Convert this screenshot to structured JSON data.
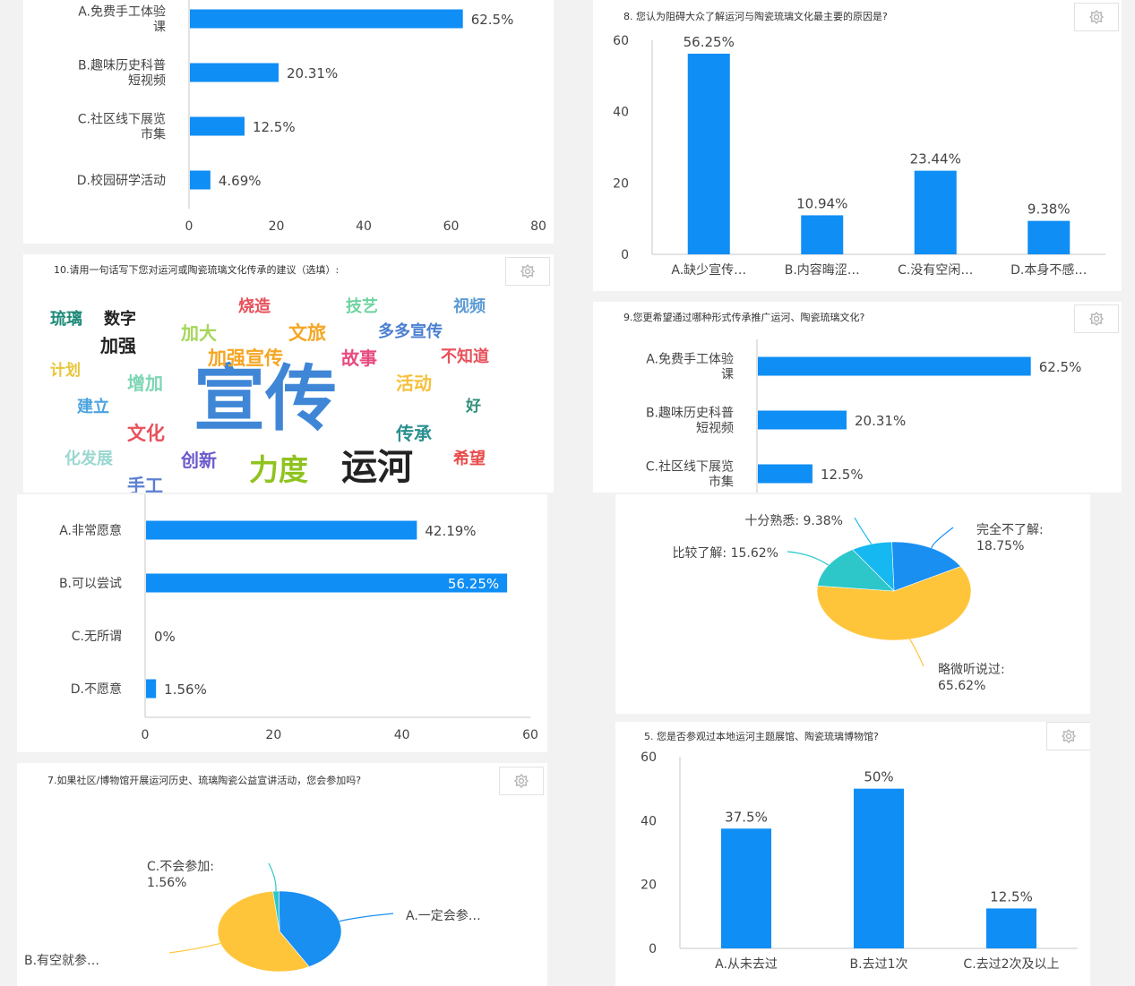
{
  "colors": {
    "bar": "#0f8ef5",
    "axis": "#c7c7c7",
    "text": "#444444",
    "grid": "#e4e4e4"
  },
  "chart_data": [
    {
      "id": "c1",
      "type": "bar",
      "orientation": "horizontal",
      "title": "",
      "categories": [
        [
          "A.免费手工体验",
          "课"
        ],
        [
          "B.趣味历史科普",
          "短视频"
        ],
        [
          "C.社区线下展览",
          "市集"
        ],
        [
          "D.校园研学活动"
        ]
      ],
      "values": [
        62.5,
        20.31,
        12.5,
        4.69
      ],
      "value_labels": [
        "62.5%",
        "20.31%",
        "12.5%",
        "4.69%"
      ],
      "xlim": [
        0,
        80
      ],
      "xticks": [
        "0",
        "20",
        "40",
        "60",
        "80"
      ]
    },
    {
      "id": "c2",
      "type": "bar",
      "orientation": "vertical",
      "title": "8. 您认为阻碍大众了解运河与陶瓷琉璃文化最主要的原因是?",
      "categories": [
        "A.缺少宣传…",
        "B.内容晦涩…",
        "C.没有空闲…",
        "D.本身不感…"
      ],
      "values": [
        56.25,
        10.94,
        23.44,
        9.38
      ],
      "value_labels": [
        "56.25%",
        "10.94%",
        "23.44%",
        "9.38%"
      ],
      "ylim": [
        0,
        60
      ],
      "yticks": [
        "0",
        "20",
        "40",
        "60"
      ]
    },
    {
      "id": "c4",
      "type": "bar",
      "orientation": "horizontal",
      "title": "9.您更希望通过哪种形式传承推广运河、陶瓷琉璃文化?",
      "categories": [
        [
          "A.免费手工体验",
          "课"
        ],
        [
          "B.趣味历史科普",
          "短视频"
        ],
        [
          "C.社区线下展览",
          "市集"
        ]
      ],
      "values": [
        62.5,
        20.31,
        12.5
      ],
      "value_labels": [
        "62.5%",
        "20.31%",
        "12.5%"
      ],
      "xlim": [
        0,
        80
      ]
    },
    {
      "id": "c5",
      "type": "bar",
      "orientation": "horizontal",
      "title": "",
      "categories": [
        [
          "A.非常愿意"
        ],
        [
          "B.可以尝试"
        ],
        [
          "C.无所谓"
        ],
        [
          "D.不愿意"
        ]
      ],
      "values": [
        42.19,
        56.25,
        0,
        1.56
      ],
      "value_labels": [
        "42.19%",
        "56.25%",
        "0%",
        "1.56%"
      ],
      "xlim": [
        0,
        60
      ],
      "xticks": [
        "0",
        "20",
        "40",
        "60"
      ]
    },
    {
      "id": "c6",
      "type": "pie",
      "title": "",
      "slices": [
        {
          "label": [
            "完全不了解:",
            "18.75%"
          ],
          "value": 18.75,
          "color": "#1a8ff2"
        },
        {
          "label": [
            "略微听说过:",
            "65.62%"
          ],
          "value": 65.62,
          "color": "#ffc53a"
        },
        {
          "label": [
            "比较了解: 15.62%"
          ],
          "value": 15.62,
          "color": "#2ec7c9"
        },
        {
          "label": [
            "十分熟悉: 9.38%"
          ],
          "value": 9.38,
          "color": "#15b8f0"
        }
      ]
    },
    {
      "id": "c7",
      "type": "pie",
      "title": "7.如果社区/博物馆开展运河历史、琉璃陶瓷公益宣讲活动，您会参加吗?",
      "slices": [
        {
          "label": [
            "A.一定会参…"
          ],
          "value": 42.19,
          "color": "#1a8ff2"
        },
        {
          "label": [
            "B.有空就参…"
          ],
          "value": 56.25,
          "color": "#ffc53a"
        },
        {
          "label": [
            "C.不会参加:",
            "1.56%"
          ],
          "value": 1.56,
          "color": "#2ec7c9"
        }
      ]
    },
    {
      "id": "c8",
      "type": "bar",
      "orientation": "vertical",
      "title": "5. 您是否参观过本地运河主题展馆、陶瓷琉璃博物馆?",
      "categories": [
        "A.从未去过",
        "B.去过1次",
        "C.去过2次及以上"
      ],
      "values": [
        37.5,
        50,
        12.5
      ],
      "value_labels": [
        "37.5%",
        "50%",
        "12.5%"
      ],
      "ylim": [
        0,
        60
      ],
      "yticks": [
        "0",
        "20",
        "40",
        "60"
      ]
    }
  ],
  "wordcloud": {
    "title": "10.请用一句话写下您对运河或陶瓷琉璃文化传承的建议（选填）:",
    "words": [
      {
        "text": "宣传",
        "color": "#3f86d6"
      },
      {
        "text": "运河",
        "color": "#222222"
      },
      {
        "text": "力度",
        "color": "#8fc31f"
      },
      {
        "text": "琉璃",
        "color": "#1f8a7a"
      },
      {
        "text": "数字",
        "color": "#222222"
      },
      {
        "text": "加强",
        "color": "#222222"
      },
      {
        "text": "烧造",
        "color": "#e8505b"
      },
      {
        "text": "技艺",
        "color": "#6fd3a0"
      },
      {
        "text": "视频",
        "color": "#5b9bd5"
      },
      {
        "text": "加大",
        "color": "#a5d65a"
      },
      {
        "text": "文旅",
        "color": "#f5a623"
      },
      {
        "text": "多多宣传",
        "color": "#4a7fd1"
      },
      {
        "text": "计划",
        "color": "#e8c53a"
      },
      {
        "text": "加强宣传",
        "color": "#f5a623"
      },
      {
        "text": "故事",
        "color": "#e84a7f"
      },
      {
        "text": "不知道",
        "color": "#e8505b"
      },
      {
        "text": "增加",
        "color": "#7ed6b5"
      },
      {
        "text": "活动",
        "color": "#f5c13a"
      },
      {
        "text": "建立",
        "color": "#4aa3df"
      },
      {
        "text": "好",
        "color": "#2f8f7a"
      },
      {
        "text": "文化",
        "color": "#e8505b"
      },
      {
        "text": "传承",
        "color": "#2a8f8f"
      },
      {
        "text": "化发展",
        "color": "#9ad8d0"
      },
      {
        "text": "创新",
        "color": "#6a5acd"
      },
      {
        "text": "希望",
        "color": "#e84a4a"
      },
      {
        "text": "手工",
        "color": "#5b7fd1"
      }
    ]
  }
}
